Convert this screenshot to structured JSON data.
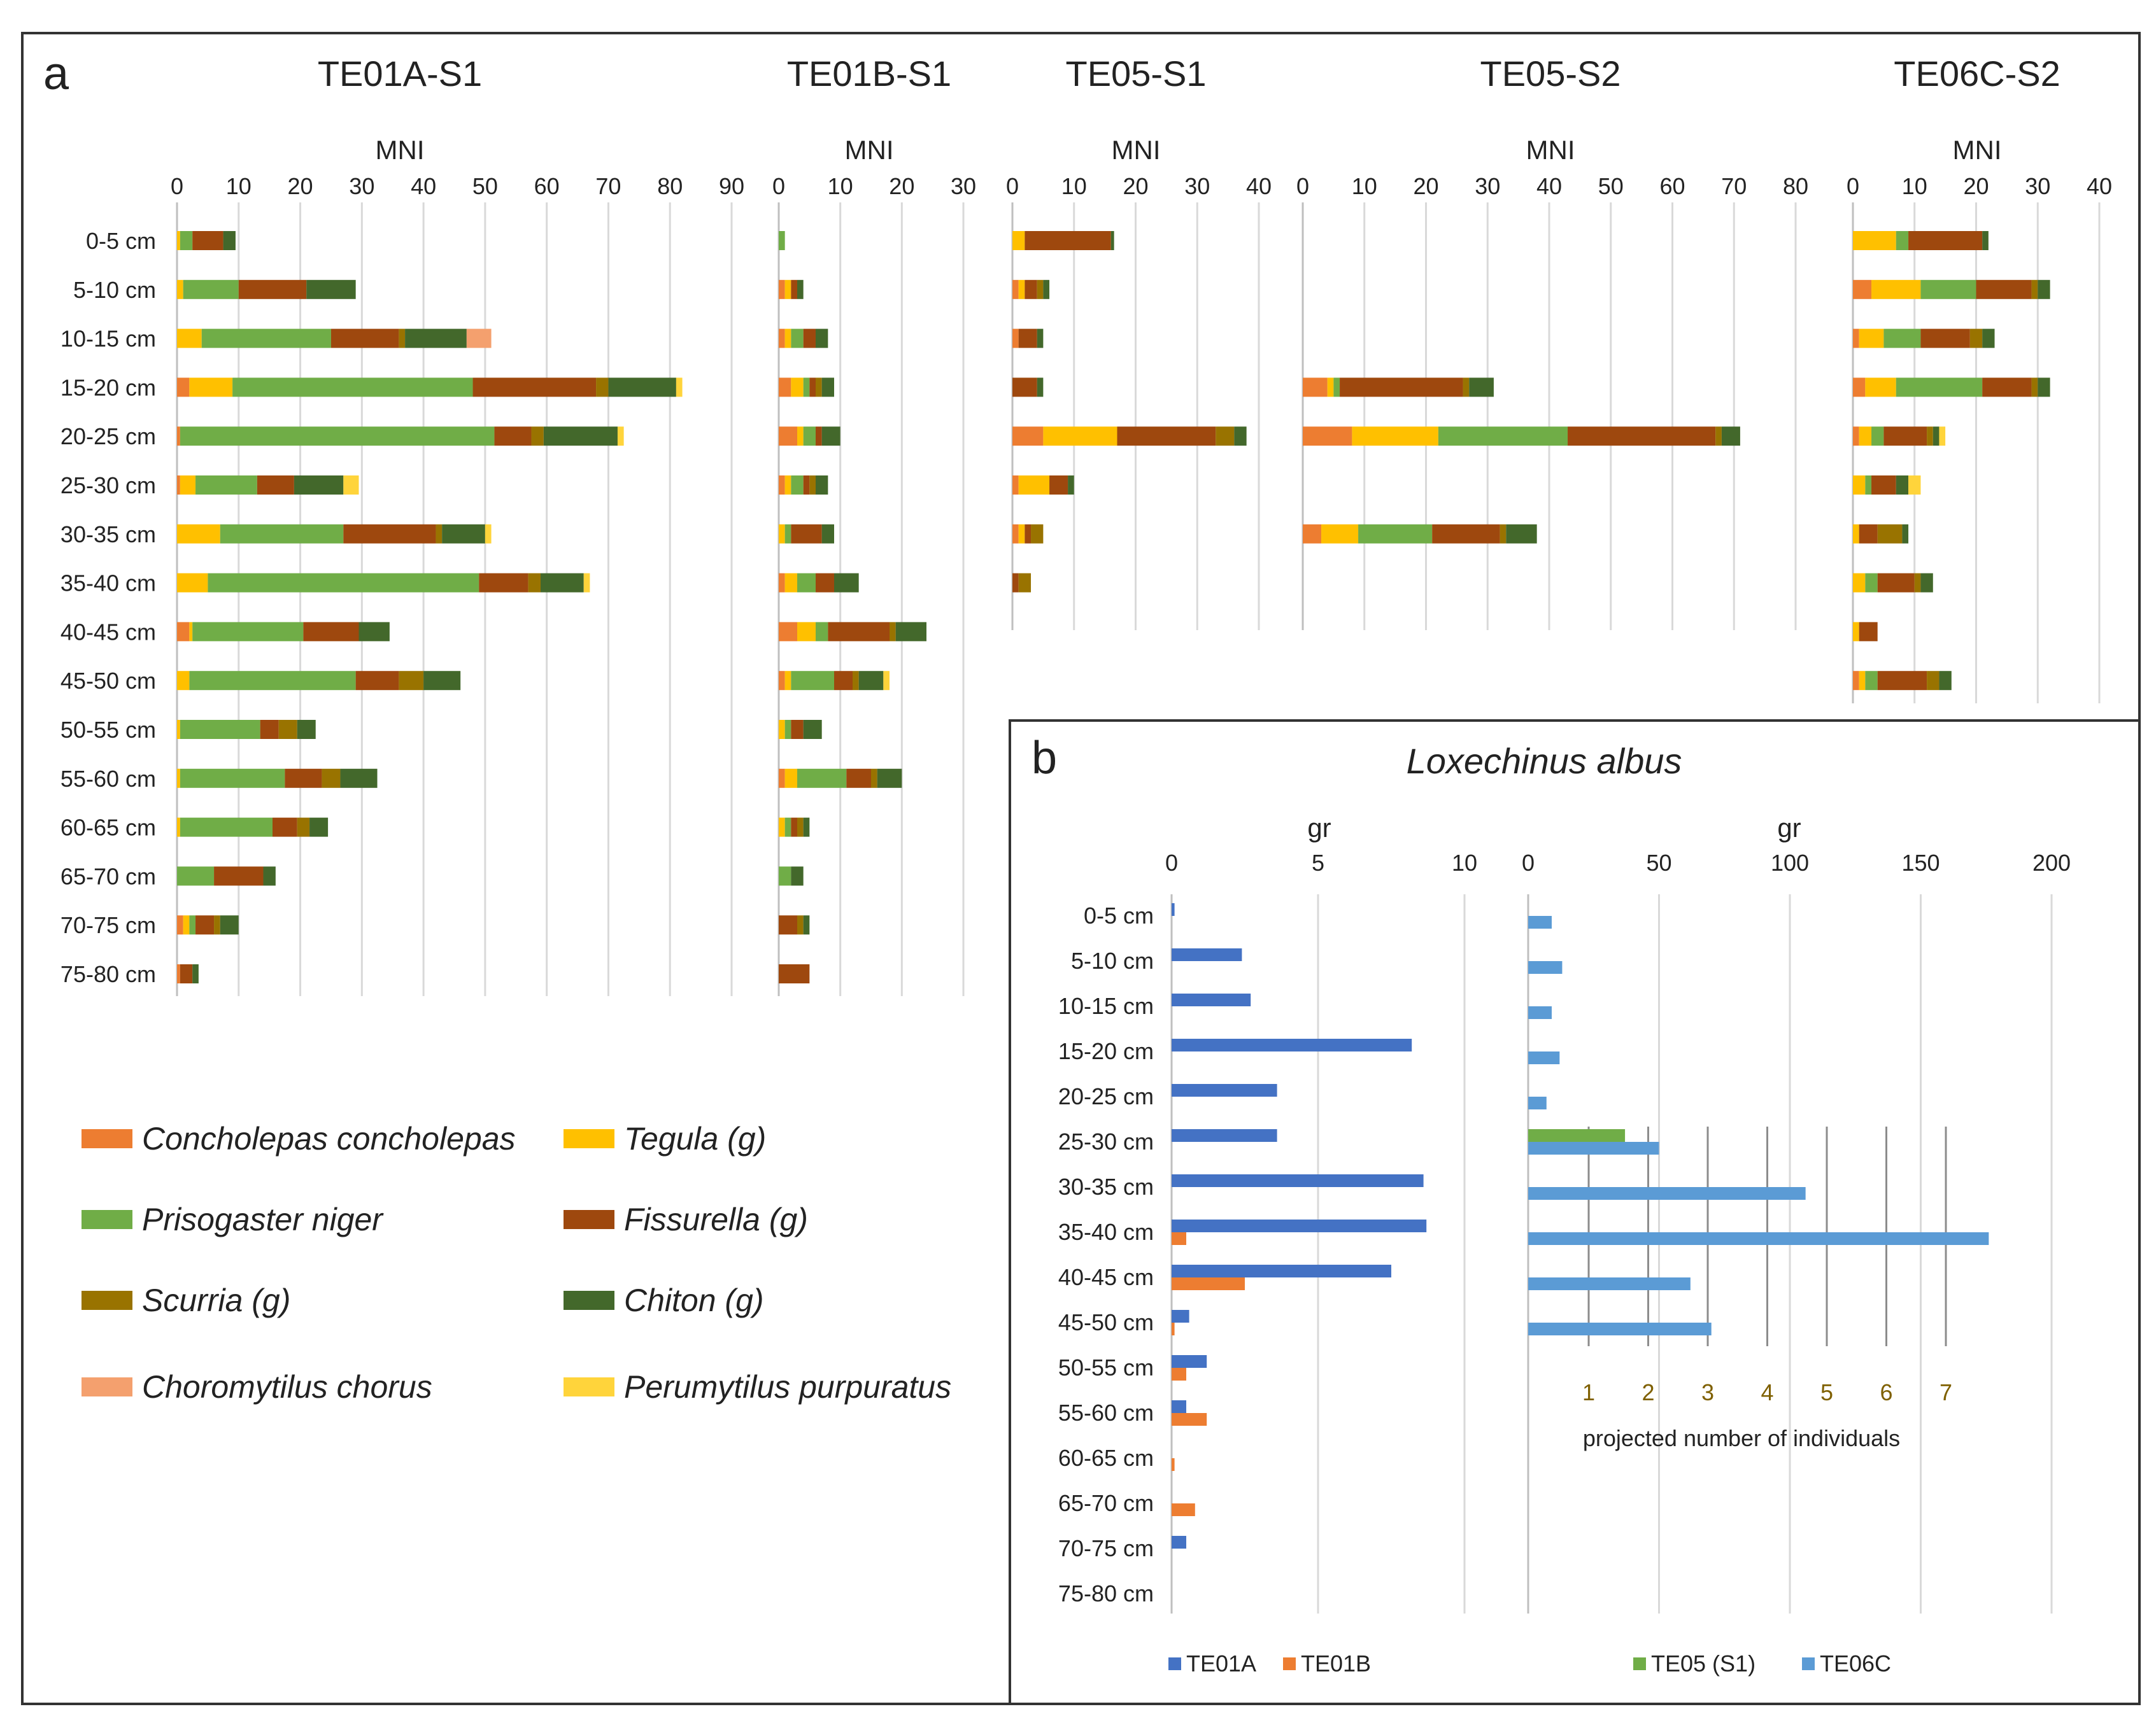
{
  "figure": {
    "panel_a_letter": "a",
    "panel_b_letter": "b",
    "colors": {
      "Concholepas concholepas": "#ed7d31",
      "Tegula (g)": "#ffc000",
      "Prisogaster niger": "#70ad47",
      "Fissurella (g)": "#9e480e",
      "Scurria (g)": "#997300",
      "Chiton (g)": "#43682b",
      "Choromytilus chorus": "#f4a06e",
      "Perumytilus purpuratus": "#ffd43b",
      "TE01A": "#4472c4",
      "TE01B": "#ed7d31",
      "TE05 (S1)": "#70ad47",
      "TE06C": "#5b9bd5"
    }
  },
  "legend_a": [
    "Concholepas concholepas",
    "Tegula (g)",
    "Prisogaster niger",
    "Fissurella (g)",
    "Scurria (g)",
    "Chiton (g)",
    "Choromytilus chorus",
    "Perumytilus purpuratus"
  ],
  "chart_data": [
    {
      "type": "bar",
      "orientation": "horizontal-stacked",
      "title": "TE01A-S1",
      "xlabel": "MNI",
      "xlim": [
        0,
        90
      ],
      "ticks": [
        0,
        10,
        20,
        30,
        40,
        50,
        60,
        70,
        80,
        90
      ],
      "categories": [
        "0-5 cm",
        "5-10 cm",
        "10-15 cm",
        "15-20 cm",
        "20-25 cm",
        "25-30 cm",
        "30-35 cm",
        "35-40 cm",
        "40-45 cm",
        "45-50 cm",
        "50-55 cm",
        "55-60 cm",
        "60-65 cm",
        "65-70 cm",
        "70-75 cm",
        "75-80 cm"
      ],
      "series": [
        {
          "name": "Concholepas concholepas",
          "values": [
            0,
            0,
            0,
            2,
            0.5,
            0.5,
            0,
            0,
            2,
            0,
            0,
            0,
            0,
            0,
            1,
            0.5
          ]
        },
        {
          "name": "Tegula (g)",
          "values": [
            0.5,
            1,
            4,
            7,
            0,
            2.5,
            7,
            5,
            0.5,
            2,
            0.5,
            0.5,
            0.5,
            0,
            1,
            0
          ]
        },
        {
          "name": "Prisogaster niger",
          "values": [
            2,
            9,
            21,
            39,
            51,
            10,
            20,
            44,
            18,
            27,
            13,
            17,
            15,
            6,
            1,
            0
          ]
        },
        {
          "name": "Fissurella (g)",
          "values": [
            5,
            11,
            11,
            20,
            6,
            6,
            15,
            8,
            9,
            7,
            3,
            6,
            4,
            8,
            3,
            2
          ]
        },
        {
          "name": "Scurria (g)",
          "values": [
            0,
            0,
            1,
            2,
            2,
            0,
            1,
            2,
            0,
            4,
            3,
            3,
            2,
            0,
            1,
            0
          ]
        },
        {
          "name": "Chiton (g)",
          "values": [
            2,
            8,
            10,
            11,
            12,
            8,
            7,
            7,
            5,
            6,
            3,
            6,
            3,
            2,
            3,
            1
          ]
        },
        {
          "name": "Choromytilus chorus",
          "values": [
            0,
            0,
            4,
            0,
            0,
            0,
            0,
            0,
            0,
            0,
            0,
            0,
            0,
            0,
            0,
            0
          ]
        },
        {
          "name": "Perumytilus purpuratus",
          "values": [
            0,
            0,
            0,
            1,
            1,
            2.5,
            1,
            1,
            0,
            0,
            0,
            0,
            0,
            0,
            0,
            0
          ]
        }
      ]
    },
    {
      "type": "bar",
      "orientation": "horizontal-stacked",
      "title": "TE01B-S1",
      "xlabel": "MNI",
      "xlim": [
        0,
        30
      ],
      "ticks": [
        0,
        10,
        20,
        30
      ],
      "categories": [
        "0-5 cm",
        "5-10 cm",
        "10-15 cm",
        "15-20 cm",
        "20-25 cm",
        "25-30 cm",
        "30-35 cm",
        "35-40 cm",
        "40-45 cm",
        "45-50 cm",
        "50-55 cm",
        "55-60 cm",
        "60-65 cm",
        "65-70 cm",
        "70-75 cm",
        "75-80 cm"
      ],
      "series": [
        {
          "name": "Concholepas concholepas",
          "values": [
            0,
            1,
            1,
            2,
            3,
            1,
            0,
            1,
            3,
            1,
            0,
            1,
            0,
            0,
            0,
            0
          ]
        },
        {
          "name": "Tegula (g)",
          "values": [
            0,
            1,
            1,
            2,
            1,
            1,
            1,
            2,
            3,
            1,
            1,
            2,
            1,
            0,
            0,
            0
          ]
        },
        {
          "name": "Prisogaster niger",
          "values": [
            1,
            0,
            2,
            1,
            2,
            2,
            1,
            3,
            2,
            7,
            1,
            8,
            1,
            2,
            0,
            0
          ]
        },
        {
          "name": "Fissurella (g)",
          "values": [
            0,
            1,
            2,
            1,
            1,
            1,
            5,
            3,
            10,
            3,
            2,
            4,
            1,
            0,
            3,
            5
          ]
        },
        {
          "name": "Scurria (g)",
          "values": [
            0,
            0,
            0,
            1,
            0,
            1,
            0,
            0,
            1,
            1,
            0,
            1,
            1,
            0,
            1,
            0
          ]
        },
        {
          "name": "Chiton (g)",
          "values": [
            0,
            1,
            2,
            2,
            3,
            2,
            2,
            4,
            5,
            4,
            3,
            4,
            1,
            2,
            1,
            0
          ]
        },
        {
          "name": "Choromytilus chorus",
          "values": [
            0,
            0,
            0,
            0,
            0,
            0,
            0,
            0,
            0,
            0,
            0,
            0,
            0,
            0,
            0,
            0
          ]
        },
        {
          "name": "Perumytilus purpuratus",
          "values": [
            0,
            0,
            0,
            0,
            0,
            0,
            0,
            0,
            0,
            1,
            0,
            0,
            0,
            0,
            0,
            0
          ]
        }
      ]
    },
    {
      "type": "bar",
      "orientation": "horizontal-stacked",
      "title": "TE05-S1",
      "xlabel": "MNI",
      "xlim": [
        0,
        40
      ],
      "ticks": [
        0,
        10,
        20,
        30,
        40
      ],
      "categories": [
        "0-5 cm",
        "5-10 cm",
        "10-15 cm",
        "15-20 cm",
        "20-25 cm",
        "25-30 cm",
        "30-35 cm",
        "35-40 cm"
      ],
      "series": [
        {
          "name": "Concholepas concholepas",
          "values": [
            0,
            1,
            1,
            0,
            5,
            1,
            1,
            0
          ]
        },
        {
          "name": "Tegula (g)",
          "values": [
            2,
            1,
            0,
            0,
            12,
            5,
            1,
            0
          ]
        },
        {
          "name": "Prisogaster niger",
          "values": [
            0,
            0,
            0,
            0,
            0,
            0,
            0,
            0
          ]
        },
        {
          "name": "Fissurella (g)",
          "values": [
            14,
            2,
            3,
            4,
            16,
            3,
            1,
            1
          ]
        },
        {
          "name": "Scurria (g)",
          "values": [
            0,
            1,
            0,
            0,
            3,
            0,
            2,
            2
          ]
        },
        {
          "name": "Chiton (g)",
          "values": [
            0.5,
            1,
            1,
            1,
            2,
            1,
            0,
            0
          ]
        },
        {
          "name": "Choromytilus chorus",
          "values": [
            0,
            0,
            0,
            0,
            0,
            0,
            0,
            0
          ]
        },
        {
          "name": "Perumytilus purpuratus",
          "values": [
            0,
            0,
            0,
            0,
            0,
            0,
            0,
            0
          ]
        }
      ]
    },
    {
      "type": "bar",
      "orientation": "horizontal-stacked",
      "title": "TE05-S2",
      "xlabel": "MNI",
      "xlim": [
        0,
        80
      ],
      "ticks": [
        0,
        10,
        20,
        30,
        40,
        50,
        60,
        70,
        80
      ],
      "categories": [
        "0-5 cm",
        "5-10 cm",
        "10-15 cm",
        "15-20 cm",
        "20-25 cm",
        "25-30 cm",
        "30-35 cm",
        "35-40 cm"
      ],
      "series": [
        {
          "name": "Concholepas concholepas",
          "values": [
            0,
            0,
            0,
            4,
            8,
            0,
            3,
            0
          ]
        },
        {
          "name": "Tegula (g)",
          "values": [
            0,
            0,
            0,
            1,
            14,
            0,
            6,
            0
          ]
        },
        {
          "name": "Prisogaster niger",
          "values": [
            0,
            0,
            0,
            1,
            21,
            0,
            12,
            0
          ]
        },
        {
          "name": "Fissurella (g)",
          "values": [
            0,
            0,
            0,
            20,
            24,
            0,
            11,
            0
          ]
        },
        {
          "name": "Scurria (g)",
          "values": [
            0,
            0,
            0,
            1,
            1,
            0,
            1,
            0
          ]
        },
        {
          "name": "Chiton (g)",
          "values": [
            0,
            0,
            0,
            4,
            3,
            0,
            5,
            0
          ]
        },
        {
          "name": "Choromytilus chorus",
          "values": [
            0,
            0,
            0,
            0,
            0,
            0,
            0,
            0
          ]
        },
        {
          "name": "Perumytilus purpuratus",
          "values": [
            0,
            0,
            0,
            0,
            0,
            0,
            0,
            0
          ]
        }
      ]
    },
    {
      "type": "bar",
      "orientation": "horizontal-stacked",
      "title": "TE06C-S2",
      "xlabel": "MNI",
      "xlim": [
        0,
        40
      ],
      "ticks": [
        0,
        10,
        20,
        30,
        40
      ],
      "categories": [
        "0-5 cm",
        "5-10 cm",
        "10-15 cm",
        "15-20 cm",
        "20-25 cm",
        "25-30 cm",
        "30-35 cm",
        "35-40 cm",
        "40-45 cm",
        "45-50 cm"
      ],
      "series": [
        {
          "name": "Concholepas concholepas",
          "values": [
            0,
            3,
            1,
            2,
            1,
            0,
            0,
            0,
            0,
            1
          ]
        },
        {
          "name": "Tegula (g)",
          "values": [
            7,
            8,
            4,
            5,
            2,
            2,
            1,
            2,
            1,
            1
          ]
        },
        {
          "name": "Prisogaster niger",
          "values": [
            2,
            9,
            6,
            14,
            2,
            1,
            0,
            2,
            0,
            2
          ]
        },
        {
          "name": "Fissurella (g)",
          "values": [
            12,
            9,
            8,
            8,
            7,
            4,
            3,
            6,
            3,
            8
          ]
        },
        {
          "name": "Scurria (g)",
          "values": [
            0,
            1,
            2,
            1,
            1,
            0,
            4,
            1,
            0,
            2
          ]
        },
        {
          "name": "Chiton (g)",
          "values": [
            1,
            2,
            2,
            2,
            1,
            2,
            1,
            2,
            0,
            2
          ]
        },
        {
          "name": "Choromytilus chorus",
          "values": [
            0,
            0,
            0,
            0,
            0,
            0,
            0,
            0,
            0,
            0
          ]
        },
        {
          "name": "Perumytilus purpuratus",
          "values": [
            0,
            0,
            0,
            0,
            1,
            2,
            0,
            0,
            0,
            0
          ]
        }
      ]
    },
    {
      "type": "bar",
      "orientation": "horizontal",
      "title": "Loxechinus albus",
      "xlabel": "gr",
      "xlim": [
        0,
        12
      ],
      "ticks": [
        0,
        5,
        10
      ],
      "categories": [
        "0-5 cm",
        "5-10 cm",
        "10-15 cm",
        "15-20 cm",
        "20-25 cm",
        "25-30 cm",
        "30-35 cm",
        "35-40 cm",
        "40-45 cm",
        "45-50 cm",
        "50-55 cm",
        "55-60 cm",
        "60-65 cm",
        "65-70 cm",
        "70-75 cm",
        "75-80 cm"
      ],
      "series": [
        {
          "name": "TE01A",
          "values": [
            0.1,
            2.4,
            2.7,
            8.2,
            3.6,
            3.6,
            8.6,
            8.7,
            7.5,
            0.6,
            1.2,
            0.5,
            0,
            0,
            0.5,
            0
          ]
        },
        {
          "name": "TE01B",
          "values": [
            0,
            0,
            0,
            0,
            0,
            0,
            0,
            0.5,
            2.5,
            0.1,
            0.5,
            1.2,
            0.1,
            0.8,
            0,
            0
          ]
        }
      ]
    },
    {
      "type": "bar",
      "orientation": "horizontal",
      "title": "",
      "xlabel": "gr",
      "xlim": [
        0,
        200
      ],
      "ticks": [
        0,
        50,
        100,
        150,
        200
      ],
      "secondary_axis": {
        "label": "projected number of individuals",
        "ticks": [
          1,
          2,
          3,
          4,
          5,
          6,
          7
        ]
      },
      "categories": [
        "0-5 cm",
        "5-10 cm",
        "10-15 cm",
        "15-20 cm",
        "20-25 cm",
        "25-30 cm",
        "30-35 cm",
        "35-40 cm",
        "40-45 cm",
        "45-50 cm"
      ],
      "series": [
        {
          "name": "TE05 (S1)",
          "values": [
            0,
            0,
            0,
            0,
            0,
            37,
            0,
            0,
            0,
            0
          ]
        },
        {
          "name": "TE06C",
          "values": [
            9,
            13,
            9,
            12,
            7,
            50,
            106,
            176,
            62,
            70
          ]
        }
      ]
    }
  ],
  "legend_b": [
    "TE01A",
    "TE01B",
    "TE05 (S1)",
    "TE06C"
  ]
}
